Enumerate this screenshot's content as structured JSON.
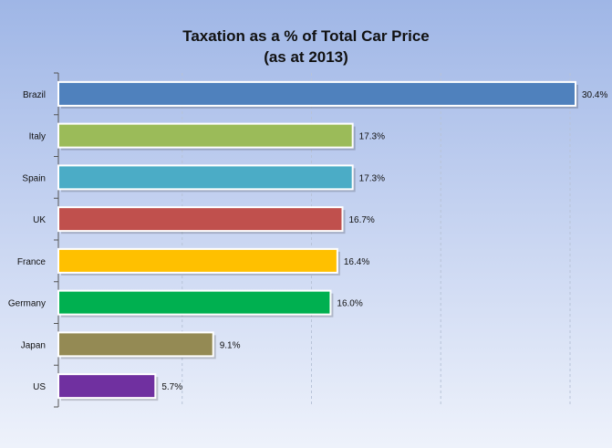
{
  "chart_data": {
    "type": "bar",
    "orientation": "horizontal",
    "title": "Taxation as a % of  Total Car Price",
    "subtitle": "(as at 2013)",
    "xlabel": "",
    "ylabel": "",
    "grid": "vertical dashed",
    "xlim": [
      0,
      30.4
    ],
    "categories": [
      "Brazil",
      "Italy",
      "Spain",
      "UK",
      "France",
      "Germany",
      "Japan",
      "US"
    ],
    "values": [
      30.4,
      17.3,
      17.3,
      16.7,
      16.4,
      16.0,
      9.1,
      5.7
    ],
    "data_labels": [
      "30.4%",
      "17.3%",
      "17.3%",
      "16.7%",
      "16.4%",
      "16.0%",
      "9.1%",
      "5.7%"
    ],
    "colors": [
      "#4f81bd",
      "#9bbb59",
      "#4bacc6",
      "#c0504d",
      "#ffc000",
      "#00b050",
      "#948a54",
      "#7030a0"
    ]
  }
}
